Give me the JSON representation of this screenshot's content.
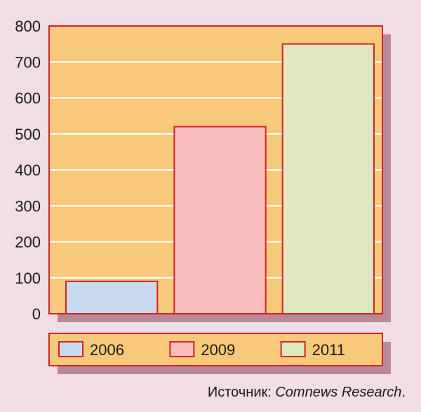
{
  "chart_data": {
    "type": "bar",
    "categories": [
      "2006",
      "2009",
      "2011"
    ],
    "values": [
      90,
      520,
      750
    ],
    "ylim": [
      0,
      800
    ],
    "yticks": [
      0,
      100,
      200,
      300,
      400,
      500,
      600,
      700,
      800
    ],
    "grid": true,
    "legend": "bottom",
    "title": "",
    "xlabel": "",
    "ylabel": "",
    "colors": {
      "plot_bg": "#f8c97a",
      "border": "#d6202a",
      "grid": "#ffffff",
      "shadow": "#b78a96",
      "bars": [
        "#c9d9ef",
        "#f7bcbc",
        "#dfe8bd"
      ]
    }
  },
  "source": {
    "prefix": "Источник: ",
    "name": "Comnews Research",
    "suffix": "."
  }
}
